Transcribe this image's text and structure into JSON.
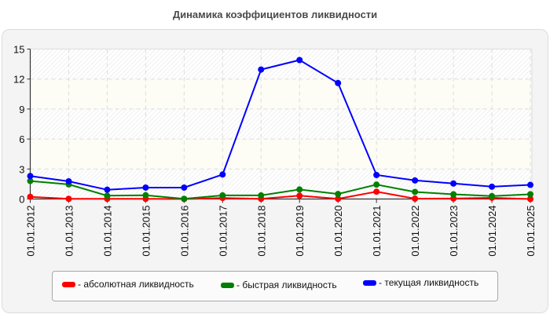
{
  "title": "Динамика коэффициентов ликвидности",
  "chart_data": {
    "type": "line",
    "title": "Динамика коэффициентов ликвидности",
    "xlabel": "",
    "ylabel": "",
    "ylim": [
      0,
      15
    ],
    "yticks": [
      0,
      3,
      6,
      9,
      12,
      15
    ],
    "grid": true,
    "legend_position": "bottom",
    "categories": [
      "01.01.2012",
      "01.01.2013",
      "01.01.2014",
      "01.01.2015",
      "01.01.2016",
      "01.01.2017",
      "01.01.2018",
      "01.01.2019",
      "01.01.2020",
      "01.01.2021",
      "01.01.2022",
      "01.01.2023",
      "01.01.2024",
      "01.01.2025"
    ],
    "series": [
      {
        "name": "абсолютная ликвидность",
        "color": "#ff0000",
        "values": [
          0.22,
          0.02,
          0.02,
          0.02,
          0.0,
          0.1,
          0.02,
          0.33,
          0.02,
          0.73,
          0.04,
          0.05,
          0.12,
          0.0
        ]
      },
      {
        "name": "быстрая ликвидность",
        "color": "#008000",
        "values": [
          1.8,
          1.46,
          0.33,
          0.38,
          0.02,
          0.36,
          0.36,
          0.95,
          0.5,
          1.44,
          0.71,
          0.47,
          0.29,
          0.47
        ]
      },
      {
        "name": "текущая ликвидность",
        "color": "#0000ff",
        "values": [
          2.3,
          1.77,
          0.93,
          1.14,
          1.14,
          2.45,
          12.95,
          13.9,
          11.6,
          2.4,
          1.86,
          1.55,
          1.23,
          1.41
        ]
      }
    ]
  },
  "legend": [
    {
      "label": "- абсолютная ликвидность",
      "color": "#ff0000"
    },
    {
      "label": "- быстрая ликвидность",
      "color": "#008000"
    },
    {
      "label": "- текущая ликвидность",
      "color": "#0000ff"
    }
  ]
}
